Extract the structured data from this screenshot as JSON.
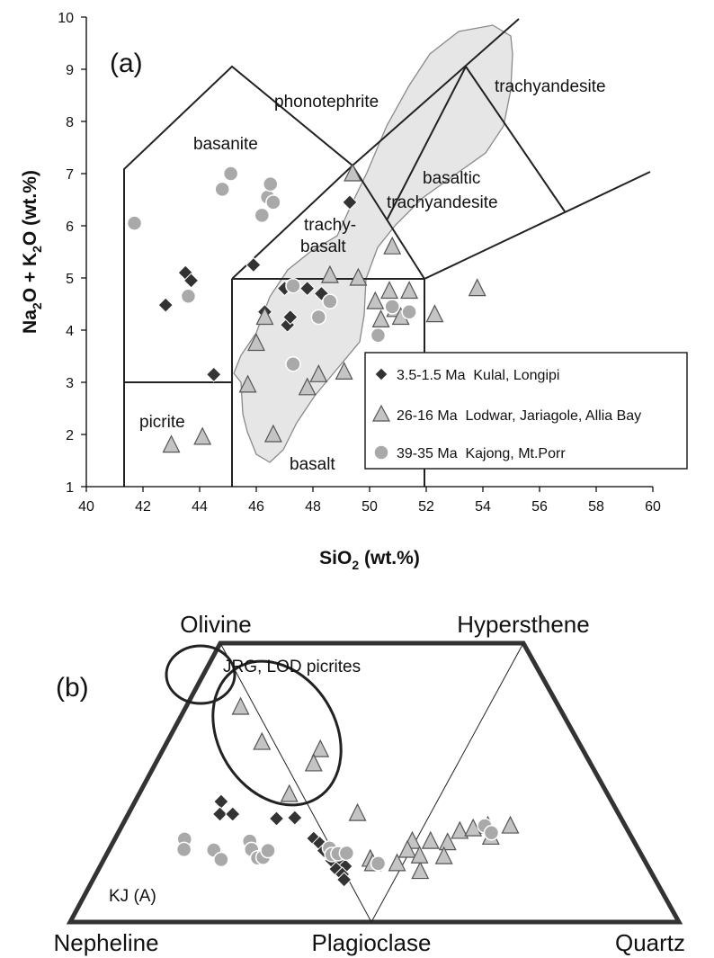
{
  "chart_data": [
    {
      "type": "scatter",
      "panel_label": "(a)",
      "xlabel_main": "SiO",
      "xlabel_sub": "2",
      "xlabel_tail": " (wt.%)",
      "ylabel_a": "Na",
      "ylabel_a_sub": "2",
      "ylabel_b": "O + K",
      "ylabel_b_sub": "2",
      "ylabel_c": "O (wt.%)",
      "xlim": [
        40,
        60
      ],
      "ylim": [
        1,
        10
      ],
      "xticks": [
        "40",
        "42",
        "44",
        "46",
        "48",
        "50",
        "52",
        "54",
        "56",
        "58",
        "60"
      ],
      "yticks": [
        "1",
        "2",
        "3",
        "4",
        "5",
        "6",
        "7",
        "8",
        "9",
        "10"
      ],
      "field_labels": {
        "phonotephrite": "phonotephrite",
        "trachyandesite": "trachyandesite",
        "basanite": "basanite",
        "basaltic": "basaltic",
        "basaltic_trachyandesite": "trachyandesite",
        "trachy": "trachy-",
        "basalt_upper": "basalt",
        "picrite": "picrite",
        "basalt": "basalt"
      },
      "series": [
        {
          "name": "3.5-1.5 Ma  Kulal, Longipi",
          "marker": "diamond",
          "color": "#333333",
          "points": [
            [
              42.8,
              4.48
            ],
            [
              43.5,
              5.1
            ],
            [
              43.7,
              4.95
            ],
            [
              44.5,
              3.15
            ],
            [
              45.9,
              5.25
            ],
            [
              46.3,
              4.35
            ],
            [
              47.0,
              4.8
            ],
            [
              47.1,
              4.1
            ],
            [
              47.2,
              4.25
            ],
            [
              47.8,
              4.8
            ],
            [
              48.3,
              4.7
            ],
            [
              49.3,
              6.45
            ]
          ]
        },
        {
          "name": "26-16 Ma  Lodwar, Jariagole, Allia Bay",
          "marker": "triangle",
          "color": "#c4c4c4",
          "points": [
            [
              43.0,
              1.8
            ],
            [
              44.1,
              1.95
            ],
            [
              45.7,
              2.95
            ],
            [
              46.0,
              3.75
            ],
            [
              46.3,
              4.25
            ],
            [
              46.6,
              2.0
            ],
            [
              47.8,
              2.9
            ],
            [
              48.2,
              3.15
            ],
            [
              48.6,
              5.05
            ],
            [
              49.1,
              3.2
            ],
            [
              49.4,
              7.0
            ],
            [
              49.6,
              5.0
            ],
            [
              50.2,
              4.55
            ],
            [
              50.4,
              4.2
            ],
            [
              50.7,
              4.75
            ],
            [
              50.8,
              5.6
            ],
            [
              50.9,
              4.4
            ],
            [
              51.1,
              4.25
            ],
            [
              51.4,
              4.75
            ],
            [
              52.3,
              4.3
            ],
            [
              53.8,
              4.8
            ]
          ]
        },
        {
          "name": "39-35 Ma  Kajong, Mt.Porr",
          "marker": "circle",
          "color": "#a9a9a9",
          "points": [
            [
              41.7,
              6.05
            ],
            [
              43.6,
              4.65
            ],
            [
              44.8,
              6.7
            ],
            [
              45.1,
              7.0
            ],
            [
              46.2,
              6.2
            ],
            [
              46.4,
              6.55
            ],
            [
              46.5,
              6.8
            ],
            [
              46.6,
              6.45
            ],
            [
              47.3,
              3.35
            ],
            [
              47.3,
              4.85
            ],
            [
              48.2,
              4.25
            ],
            [
              48.6,
              4.55
            ],
            [
              50.3,
              3.9
            ],
            [
              50.8,
              4.45
            ],
            [
              51.4,
              4.35
            ]
          ]
        }
      ],
      "legend_position": "lower-right"
    },
    {
      "type": "scatter",
      "panel_label": "(b)",
      "diagram": "ternary-trapezoid",
      "vertices": {
        "olivine": "Olivine",
        "hypersthene": "Hypersthene",
        "nepheline": "Nepheline",
        "plagioclase": "Plagioclase",
        "quartz": "Quartz"
      },
      "annotations": {
        "jrg": "JRG, LOD picrites",
        "kj": "KJ (A)"
      },
      "series": [
        {
          "name": "3.5-1.5 Ma  Kulal, Longipi",
          "marker": "diamond",
          "color": "#333333"
        },
        {
          "name": "26-16 Ma  Lodwar, Jariagole, Allia Bay",
          "marker": "triangle",
          "color": "#c4c4c4"
        },
        {
          "name": "39-35 Ma  Kajong, Mt.Porr",
          "marker": "circle",
          "color": "#a9a9a9"
        }
      ]
    }
  ],
  "colors": {
    "field_shading": "#e6e6e6",
    "field_outline": "#8a8a8a"
  }
}
